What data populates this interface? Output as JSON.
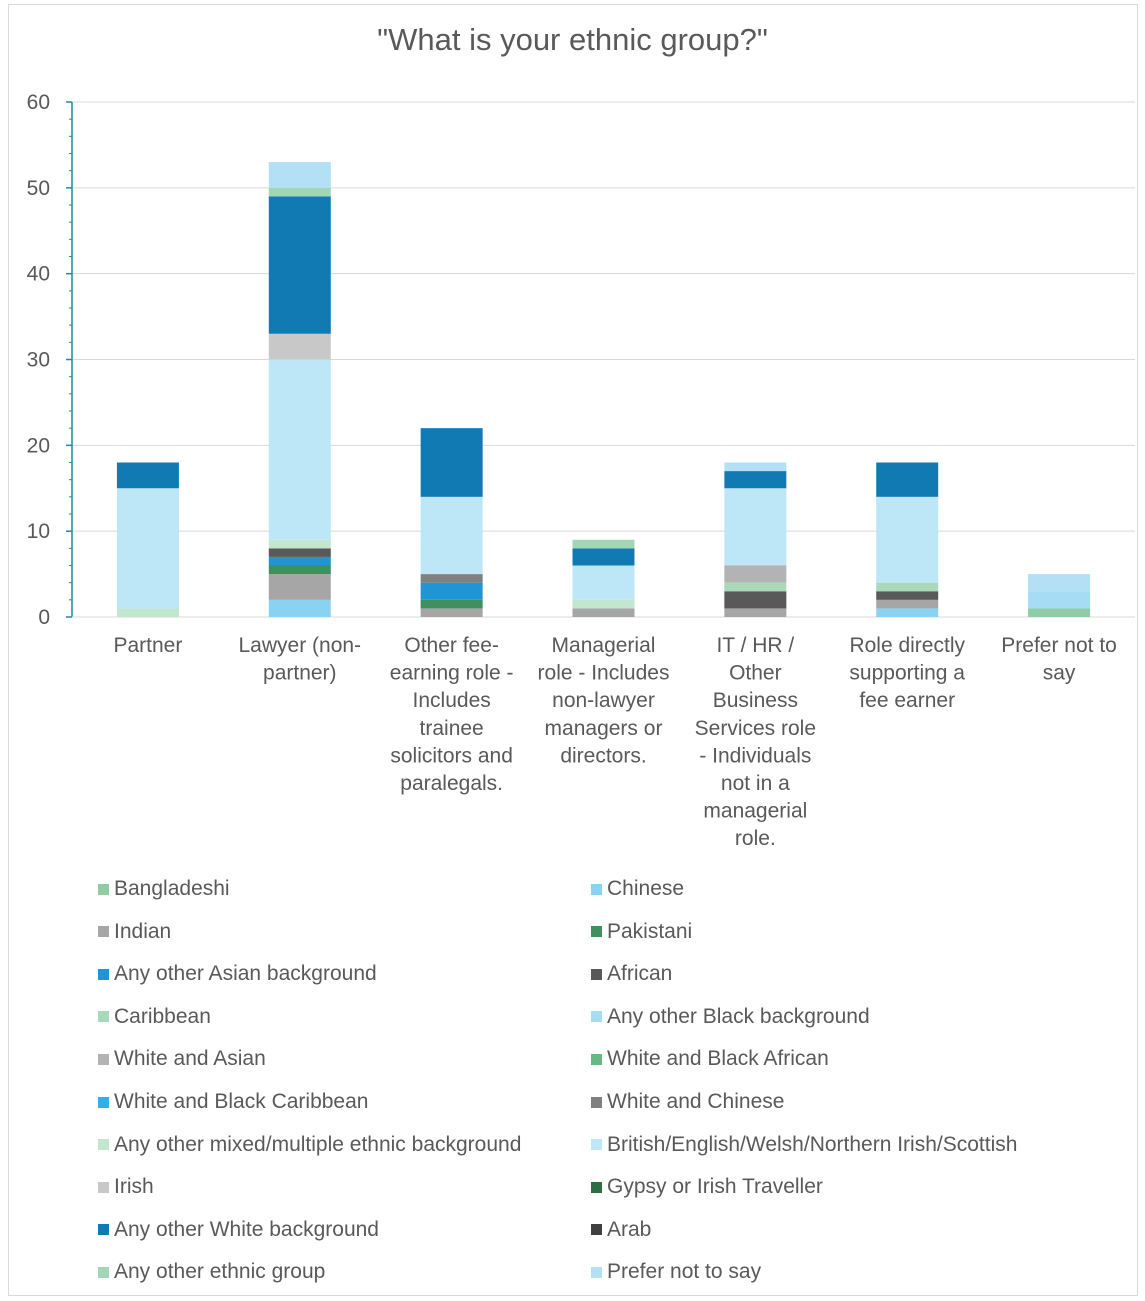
{
  "chart_data": {
    "type": "bar",
    "stacked": true,
    "title": "\"What is your ethnic group?\"",
    "xlabel": "",
    "ylabel": "",
    "ylim": [
      0,
      60
    ],
    "yticks": [
      0,
      10,
      20,
      30,
      40,
      50,
      60
    ],
    "grid": true,
    "legend_position": "bottom",
    "categories": [
      "Partner",
      "Lawyer (non-partner)",
      "Other fee-earning role - Includes trainee solicitors and paralegals.",
      "Managerial role - Includes non-lawyer managers or directors.",
      "IT / HR / Other Business Services role - Individuals not in a managerial role.",
      "Role directly supporting a fee earner",
      "Prefer not to say"
    ],
    "category_lines": [
      [
        "Partner"
      ],
      [
        "Lawyer (non-",
        "partner)"
      ],
      [
        "Other fee-",
        "earning role -",
        "Includes",
        "trainee",
        "solicitors and",
        "paralegals."
      ],
      [
        "Managerial",
        "role - Includes",
        "non-lawyer",
        "managers or",
        "directors."
      ],
      [
        "IT / HR /",
        "Other",
        "Business",
        "Services role",
        "- Individuals",
        "not in a",
        "managerial",
        "role."
      ],
      [
        "Role directly",
        "supporting a",
        "fee earner"
      ],
      [
        "Prefer not to",
        "say"
      ]
    ],
    "series": [
      {
        "name": "Bangladeshi",
        "color": "#8fcca5",
        "values": [
          0,
          0,
          0,
          0,
          0,
          0,
          1
        ]
      },
      {
        "name": "Chinese",
        "color": "#8ad2f2",
        "values": [
          0,
          2,
          0,
          0,
          0,
          1,
          0
        ]
      },
      {
        "name": "Indian",
        "color": "#a6a6a6",
        "values": [
          0,
          3,
          1,
          1,
          1,
          1,
          0
        ]
      },
      {
        "name": "Pakistani",
        "color": "#3f8f5f",
        "values": [
          0,
          1,
          1,
          0,
          0,
          0,
          0
        ]
      },
      {
        "name": "Any other Asian background",
        "color": "#1f96d3",
        "values": [
          0,
          1,
          2,
          0,
          0,
          0,
          0
        ]
      },
      {
        "name": "African",
        "color": "#595959",
        "values": [
          0,
          1,
          0,
          0,
          2,
          1,
          0
        ]
      },
      {
        "name": "Caribbean",
        "color": "#a9d9b8",
        "values": [
          0,
          0,
          0,
          0,
          1,
          1,
          0
        ]
      },
      {
        "name": "Any other Black background",
        "color": "#a7dcf5",
        "values": [
          0,
          0,
          0,
          0,
          0,
          0,
          2
        ]
      },
      {
        "name": "White and Asian",
        "color": "#b3b3b3",
        "values": [
          0,
          0,
          0,
          0,
          2,
          0,
          0
        ]
      },
      {
        "name": "White and Black African",
        "color": "#67b982",
        "values": [
          0,
          0,
          0,
          0,
          0,
          0,
          0
        ]
      },
      {
        "name": "White and Black Caribbean",
        "color": "#33aee8",
        "values": [
          0,
          0,
          0,
          0,
          0,
          0,
          0
        ]
      },
      {
        "name": "White and Chinese",
        "color": "#808080",
        "values": [
          0,
          0,
          1,
          0,
          0,
          0,
          0
        ]
      },
      {
        "name": "Any other mixed/multiple ethnic background",
        "color": "#c3e6cf",
        "values": [
          1,
          1,
          0,
          1,
          0,
          0,
          0
        ]
      },
      {
        "name": "British/English/Welsh/Northern Irish/Scottish",
        "color": "#bde6f7",
        "values": [
          14,
          21,
          9,
          4,
          9,
          10,
          0
        ]
      },
      {
        "name": "Irish",
        "color": "#c8c8c8",
        "values": [
          0,
          3,
          0,
          0,
          0,
          0,
          0
        ]
      },
      {
        "name": "Gypsy or Irish Traveller",
        "color": "#2e6e47",
        "values": [
          0,
          0,
          0,
          0,
          0,
          0,
          0
        ]
      },
      {
        "name": "Any other White background",
        "color": "#117ab3",
        "values": [
          3,
          16,
          8,
          2,
          2,
          4,
          0
        ]
      },
      {
        "name": "Arab",
        "color": "#404040",
        "values": [
          0,
          0,
          0,
          0,
          0,
          0,
          0
        ]
      },
      {
        "name": "Any other ethnic group",
        "color": "#a3d6b5",
        "values": [
          0,
          1,
          0,
          1,
          0,
          0,
          0
        ]
      },
      {
        "name": "Prefer not to say",
        "color": "#b3e0f5",
        "values": [
          0,
          3,
          0,
          0,
          1,
          0,
          2
        ]
      }
    ]
  }
}
